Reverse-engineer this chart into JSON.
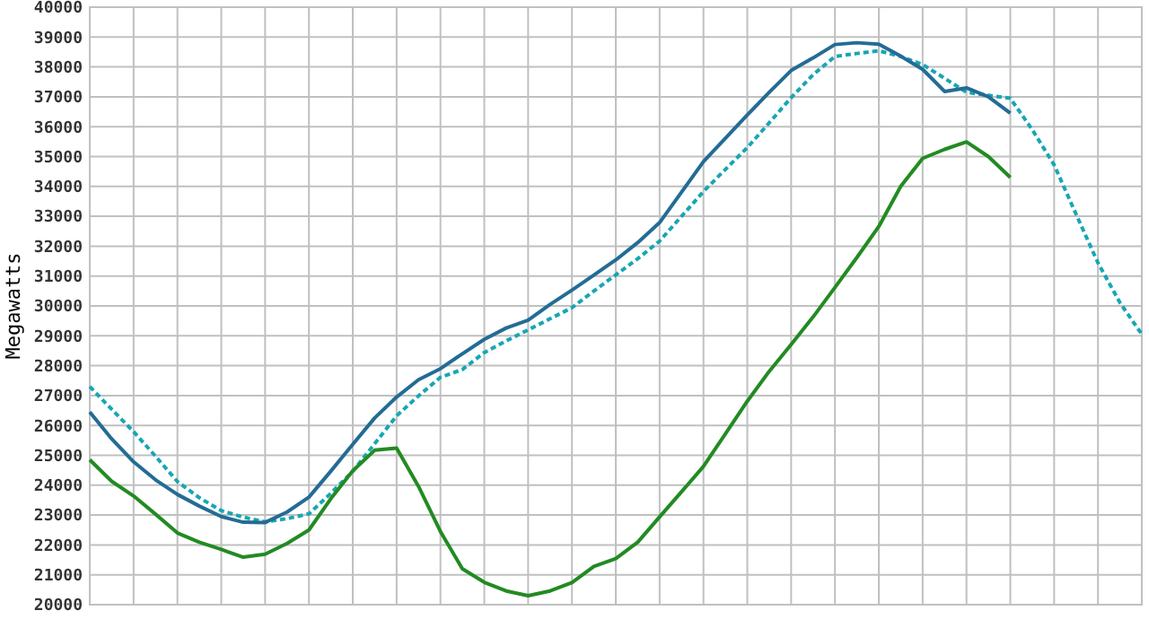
{
  "chart_data": {
    "type": "line",
    "ylabel": "Megawatts",
    "ylim": [
      20000,
      40000
    ],
    "categories": [
      null,
      null,
      null,
      null,
      null,
      null,
      null,
      null,
      null,
      null,
      null,
      null,
      null,
      null,
      null,
      null,
      null,
      null,
      null,
      null,
      null,
      null,
      null,
      null,
      null,
      null,
      null,
      null,
      null,
      null,
      null,
      null,
      null,
      null,
      null,
      null,
      null,
      null,
      null,
      null,
      null,
      null,
      null,
      null,
      null,
      null,
      null,
      null,
      null
    ],
    "yticks": [
      20000,
      21000,
      22000,
      23000,
      24000,
      25000,
      26000,
      27000,
      28000,
      29000,
      30000,
      31000,
      32000,
      33000,
      34000,
      35000,
      36000,
      37000,
      38000,
      39000,
      40000
    ],
    "grid": true,
    "tick_labels": "y",
    "marker": "none",
    "series": [
      {
        "color": "#17a6b4",
        "line_style": "dashed",
        "values": [
          27300,
          26540,
          25790,
          24970,
          24120,
          23580,
          23150,
          22930,
          22770,
          22880,
          23040,
          23730,
          24460,
          25390,
          26320,
          26990,
          27610,
          27870,
          28440,
          28830,
          29200,
          29570,
          29940,
          30500,
          31040,
          31580,
          32170,
          33000,
          33830,
          34570,
          35300,
          36130,
          36970,
          37740,
          38350,
          38450,
          38540,
          38350,
          38080,
          37620,
          37150,
          37050,
          36950,
          35900,
          34720,
          33070,
          31440,
          30110,
          29050
        ]
      },
      {
        "color": "#236c95",
        "line_style": "solid",
        "values": [
          26450,
          25550,
          24780,
          24180,
          23690,
          23300,
          22950,
          22760,
          22750,
          23100,
          23600,
          24470,
          25370,
          26250,
          26950,
          27530,
          27900,
          28400,
          28880,
          29260,
          29520,
          30050,
          30530,
          31030,
          31540,
          32120,
          32790,
          33810,
          34830,
          35610,
          36390,
          37150,
          37880,
          38300,
          38750,
          38810,
          38760,
          38360,
          37920,
          37180,
          37300,
          37000,
          36450,
          null,
          null,
          null,
          null,
          null,
          null
        ]
      },
      {
        "color": "#228b22",
        "line_style": "solid",
        "values": [
          24850,
          24130,
          23640,
          23030,
          22400,
          22090,
          21850,
          21590,
          21690,
          22050,
          22500,
          23550,
          24480,
          25170,
          25240,
          23960,
          22450,
          21200,
          20750,
          20460,
          20300,
          20460,
          20740,
          21280,
          21540,
          22090,
          22940,
          23780,
          24630,
          25720,
          26810,
          27810,
          28710,
          29630,
          30620,
          31620,
          32660,
          34000,
          34940,
          35240,
          35490,
          35000,
          34300,
          null,
          null,
          null,
          null,
          null,
          null
        ]
      }
    ]
  }
}
